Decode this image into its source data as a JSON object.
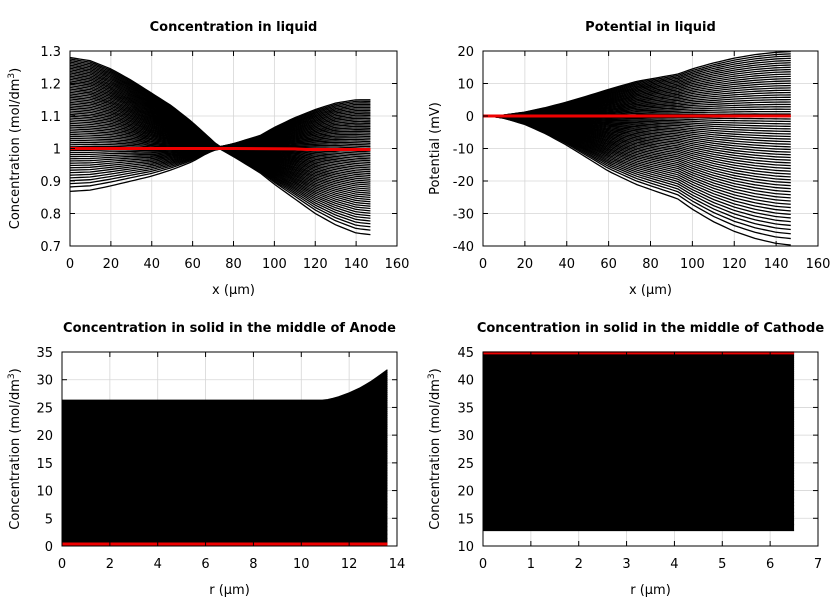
{
  "chart_data": [
    {
      "type": "line",
      "title": "Concentration in liquid",
      "xlabel": "x (µm)",
      "ylabel_main": "Concentration (mol/dm",
      "ylabel_sup": "3",
      "ylabel_tail": ")",
      "xlim": [
        0,
        160
      ],
      "ylim": [
        0.7,
        1.3
      ],
      "xticks": [
        0,
        20,
        40,
        60,
        80,
        100,
        120,
        140,
        160
      ],
      "yticks": [
        0.7,
        0.8,
        0.9,
        1,
        1.1,
        1.2,
        1.3
      ],
      "ytick_labels": [
        "0.7",
        "0.8",
        "0.9",
        "1",
        "1.1",
        "1.2",
        "1.3"
      ],
      "grid": true,
      "series_color": "#000000",
      "highlight_color": "#ee0000",
      "envelope": {
        "x": [
          0,
          10,
          20,
          30,
          40,
          50,
          60,
          67,
          73,
          80,
          93,
          100,
          110,
          120,
          130,
          140,
          147
        ],
        "upper": [
          1.28,
          1.27,
          1.245,
          1.21,
          1.17,
          1.13,
          1.08,
          1.04,
          1.005,
          1.015,
          1.04,
          1.065,
          1.095,
          1.12,
          1.14,
          1.15,
          1.15
        ],
        "lower": [
          0.868,
          0.872,
          0.885,
          0.9,
          0.915,
          0.935,
          0.96,
          0.985,
          1.0,
          0.975,
          0.925,
          0.89,
          0.845,
          0.8,
          0.765,
          0.74,
          0.735
        ]
      },
      "highlight": {
        "x": [
          0,
          40,
          80,
          110,
          116,
          147
        ],
        "y": [
          1.0,
          1.0,
          1.0,
          0.999,
          0.997,
          0.997
        ]
      }
    },
    {
      "type": "line",
      "title": "Potential in liquid",
      "xlabel": "x (µm)",
      "ylabel_main": "Potential (mV)",
      "ylabel_sup": "",
      "ylabel_tail": "",
      "xlim": [
        0,
        160
      ],
      "ylim": [
        -40,
        20
      ],
      "xticks": [
        0,
        20,
        40,
        60,
        80,
        100,
        120,
        140,
        160
      ],
      "yticks": [
        -40,
        -30,
        -20,
        -10,
        0,
        10,
        20
      ],
      "ytick_labels": [
        "-40",
        "-30",
        "-20",
        "-10",
        "0",
        "10",
        "20"
      ],
      "grid": true,
      "series_color": "#000000",
      "highlight_color": "#ee0000",
      "envelope": {
        "x": [
          0,
          5,
          10,
          20,
          30,
          40,
          50,
          60,
          73,
          80,
          93,
          100,
          110,
          120,
          130,
          140,
          147
        ],
        "upper": [
          0,
          0.1,
          0.3,
          1.2,
          2.6,
          4.3,
          6.2,
          8.2,
          10.6,
          11.4,
          12.9,
          14.5,
          16.3,
          17.8,
          18.9,
          19.6,
          19.8
        ],
        "lower": [
          0,
          -0.2,
          -0.7,
          -2.6,
          -5.5,
          -9.0,
          -13.0,
          -17.0,
          -21.0,
          -22.6,
          -25.5,
          -28.7,
          -32.5,
          -35.5,
          -37.7,
          -39.2,
          -39.7
        ]
      },
      "highlight": {
        "x": [
          0,
          147
        ],
        "y": [
          0,
          0
        ]
      }
    },
    {
      "type": "line",
      "title": "Concentration in solid in the middle of Anode",
      "xlabel": "r (µm)",
      "ylabel_main": "Concentration (mol/dm",
      "ylabel_sup": "3",
      "ylabel_tail": ")",
      "xlim": [
        0,
        14
      ],
      "ylim": [
        0,
        35
      ],
      "xticks": [
        0,
        2,
        4,
        6,
        8,
        10,
        12,
        14
      ],
      "yticks": [
        0,
        5,
        10,
        15,
        20,
        25,
        30,
        35
      ],
      "ytick_labels": [
        "0",
        "5",
        "10",
        "15",
        "20",
        "25",
        "30",
        "35"
      ],
      "grid": true,
      "series_color": "#000000",
      "highlight_color": "#ee0000",
      "envelope": {
        "x": [
          0,
          2,
          4,
          6,
          8,
          10,
          11,
          11.5,
          12,
          12.5,
          13,
          13.6
        ],
        "upper": [
          26.3,
          26.3,
          26.3,
          26.3,
          26.3,
          26.3,
          26.3,
          26.8,
          27.6,
          28.6,
          29.9,
          31.8
        ],
        "lower": [
          0.3,
          0.3,
          0.3,
          0.3,
          0.3,
          0.3,
          0.3,
          0.3,
          0.3,
          0.3,
          0.3,
          0.3
        ]
      },
      "highlight": {
        "x": [
          0,
          13.6
        ],
        "y": [
          0.35,
          0.35
        ]
      }
    },
    {
      "type": "line",
      "title": "Concentration in solid in the middle of Cathode",
      "xlabel": "r (µm)",
      "ylabel_main": "Concentration (mol/dm",
      "ylabel_sup": "3",
      "ylabel_tail": ")",
      "xlim": [
        0,
        7
      ],
      "ylim": [
        10,
        45
      ],
      "xticks": [
        0,
        1,
        2,
        3,
        4,
        5,
        6,
        7
      ],
      "yticks": [
        10,
        15,
        20,
        25,
        30,
        35,
        40,
        45
      ],
      "ytick_labels": [
        "10",
        "15",
        "20",
        "25",
        "30",
        "35",
        "40",
        "45"
      ],
      "grid": true,
      "series_color": "#000000",
      "highlight_color": "#ee0000",
      "envelope": {
        "x": [
          0,
          1,
          2,
          3,
          4,
          5,
          6,
          6.5
        ],
        "upper": [
          44.8,
          44.8,
          44.8,
          44.8,
          44.8,
          44.8,
          44.8,
          44.8
        ],
        "lower": [
          12.8,
          12.8,
          12.8,
          12.8,
          12.8,
          12.8,
          12.8,
          12.8
        ]
      },
      "highlight": {
        "x": [
          0,
          6.5
        ],
        "y": [
          44.85,
          44.85
        ]
      }
    }
  ]
}
